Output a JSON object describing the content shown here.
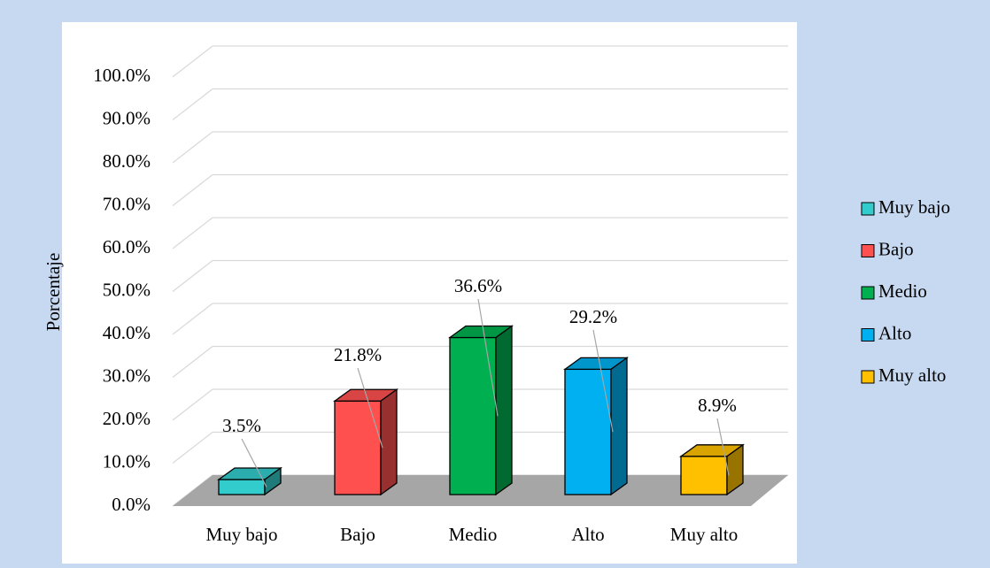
{
  "chart_data": {
    "type": "bar3d",
    "y_label": "Porcentaje",
    "categories": [
      "Muy bajo",
      "Bajo",
      "Medio",
      "Alto",
      "Muy alto"
    ],
    "values": [
      3.5,
      21.8,
      36.6,
      29.2,
      8.9
    ],
    "value_labels": [
      "3.5%",
      "21.8%",
      "36.6%",
      "29.2%",
      "8.9%"
    ],
    "colors": [
      "#33cccc",
      "#ff5050",
      "#00b050",
      "#00b0f0",
      "#ffc000"
    ],
    "ylim": [
      0,
      100
    ],
    "yticks": [
      {
        "value": 0,
        "label": "0.0%"
      },
      {
        "value": 10,
        "label": "10.0%"
      },
      {
        "value": 20,
        "label": "20.0%"
      },
      {
        "value": 30,
        "label": "30.0%"
      },
      {
        "value": 40,
        "label": "40.0%"
      },
      {
        "value": 50,
        "label": "50.0%"
      },
      {
        "value": 60,
        "label": "60.0%"
      },
      {
        "value": 70,
        "label": "70.0%"
      },
      {
        "value": 80,
        "label": "80.0%"
      },
      {
        "value": 90,
        "label": "90.0%"
      },
      {
        "value": 100,
        "label": "100.0%"
      }
    ],
    "grid": true,
    "legend": "right"
  }
}
